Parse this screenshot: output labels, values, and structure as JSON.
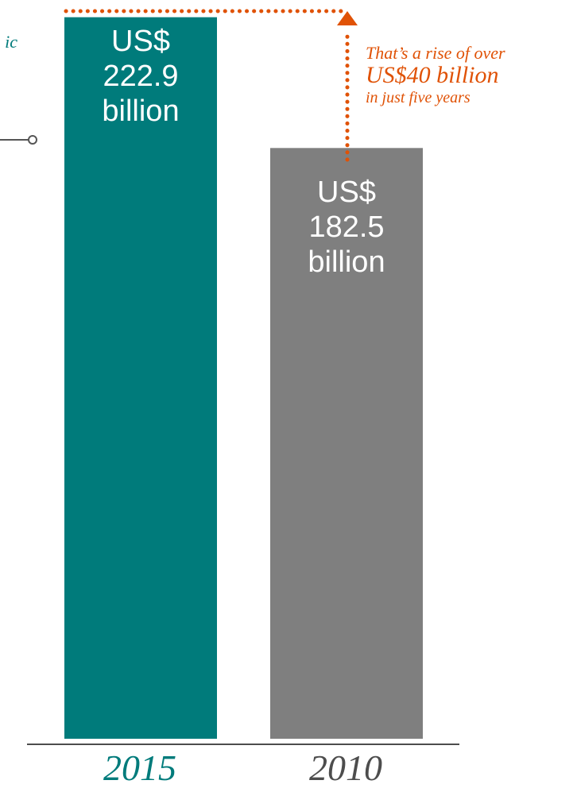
{
  "colors": {
    "bar_2015": "#007b7b",
    "bar_2010": "#7f7f7f",
    "annotation": "#e05206",
    "axis": "#4d4d4d",
    "connector": "#555555"
  },
  "partial_text": "ic",
  "annotation": {
    "line1": "That’s a rise of over",
    "line2": "US$40 billion",
    "line3": "in just five years"
  },
  "chart_data": {
    "type": "bar",
    "categories": [
      "2015",
      "2010"
    ],
    "values": [
      222.9,
      182.5
    ],
    "unit": "US$ billion",
    "ylim": [
      0,
      230
    ],
    "grid": false,
    "bar_labels": [
      [
        "US$",
        "222.9",
        "billion"
      ],
      [
        "US$",
        "182.5",
        "billion"
      ]
    ]
  }
}
